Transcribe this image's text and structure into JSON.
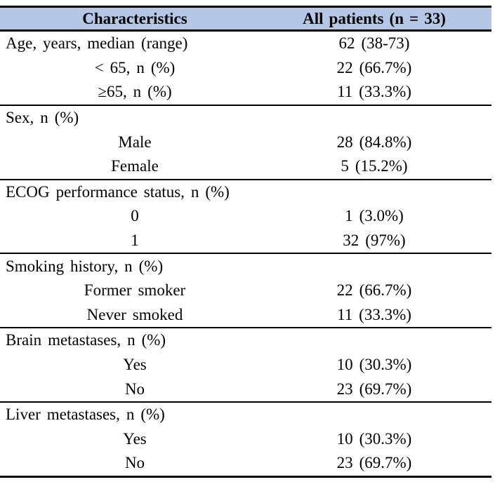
{
  "colors": {
    "header_bg": "#b4c7e7",
    "rule": "#000000",
    "text": "#000000"
  },
  "table": {
    "header": {
      "characteristics": "Characteristics",
      "all_patients": "All patients (n = 33)"
    },
    "sections": [
      {
        "name": "age",
        "rows": [
          {
            "label": "Age, years, median (range)",
            "value": "62 (38-73)",
            "indent": false
          },
          {
            "label": "< 65, n (%)",
            "value": "22 (66.7%)",
            "indent": true
          },
          {
            "label": "≥65, n (%)",
            "value": "11 (33.3%)",
            "indent": true
          }
        ]
      },
      {
        "name": "sex",
        "rows": [
          {
            "label": "Sex, n (%)",
            "value": "",
            "indent": false
          },
          {
            "label": "Male",
            "value": "28 (84.8%)",
            "indent": true
          },
          {
            "label": "Female",
            "value": "5 (15.2%)",
            "indent": true
          }
        ]
      },
      {
        "name": "ecog",
        "rows": [
          {
            "label": "ECOG performance status, n (%)",
            "value": "",
            "indent": false
          },
          {
            "label": "0",
            "value": "1 (3.0%)",
            "indent": true
          },
          {
            "label": "1",
            "value": "32 (97%)",
            "indent": true
          }
        ]
      },
      {
        "name": "smoking",
        "rows": [
          {
            "label": "Smoking history, n (%)",
            "value": "",
            "indent": false
          },
          {
            "label": "Former smoker",
            "value": "22 (66.7%)",
            "indent": true
          },
          {
            "label": "Never smoked",
            "value": "11 (33.3%)",
            "indent": true
          }
        ]
      },
      {
        "name": "brain-metastases",
        "rows": [
          {
            "label": "Brain metastases, n (%)",
            "value": "",
            "indent": false
          },
          {
            "label": "Yes",
            "value": "10 (30.3%)",
            "indent": true
          },
          {
            "label": "No",
            "value": "23 (69.7%)",
            "indent": true
          }
        ]
      },
      {
        "name": "liver-metastases",
        "rows": [
          {
            "label": "Liver metastases, n (%)",
            "value": "",
            "indent": false
          },
          {
            "label": "Yes",
            "value": "10 (30.3%)",
            "indent": true
          },
          {
            "label": "No",
            "value": "23 (69.7%)",
            "indent": true
          }
        ]
      }
    ]
  }
}
